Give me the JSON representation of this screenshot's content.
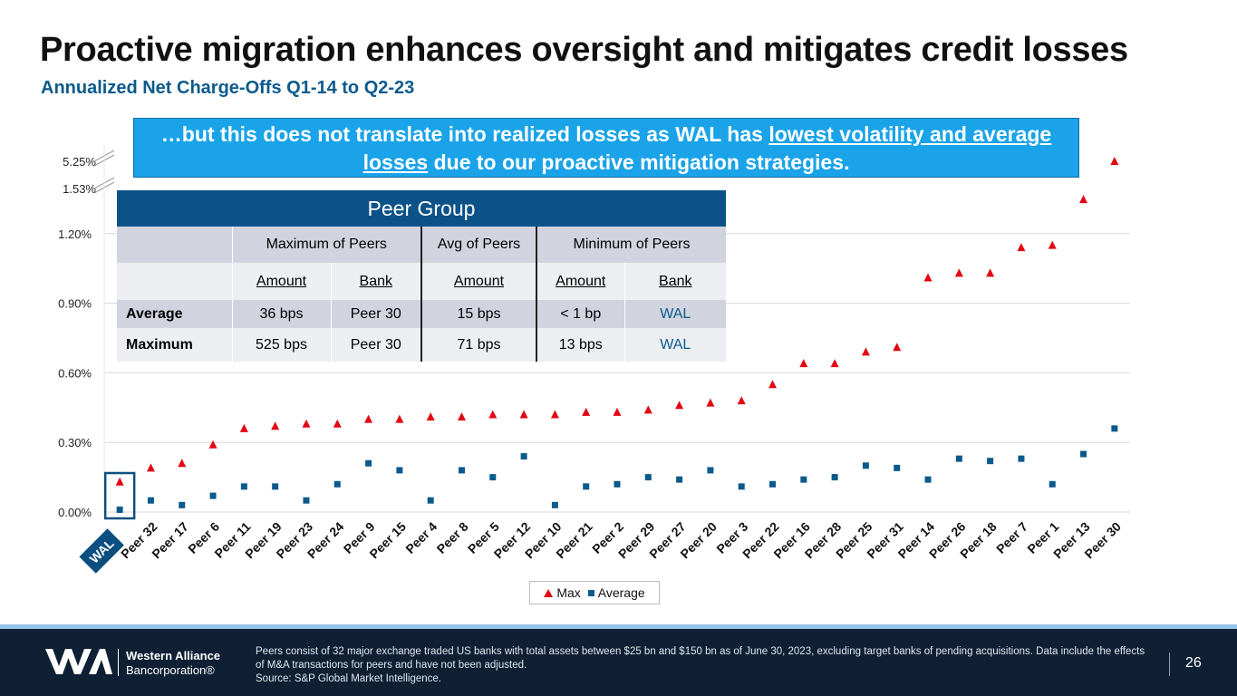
{
  "title": "Proactive migration enhances oversight and mitigates credit losses",
  "subtitle": "Annualized Net Charge-Offs Q1-14 to Q2-23",
  "callout": {
    "pre": "…but this does not translate into realized losses as WAL has ",
    "underlined": "lowest volatility and average losses",
    "post": " due to our proactive mitigation strategies."
  },
  "peer_table": {
    "title": "Peer Group",
    "col_groups": [
      "Maximum of Peers",
      "Avg of Peers",
      "Minimum of Peers"
    ],
    "sub_headers": [
      "Amount",
      "Bank",
      "Amount",
      "Amount",
      "Bank"
    ],
    "rows": [
      {
        "label": "Average",
        "cells": [
          "36 bps",
          "Peer 30",
          "15 bps",
          "< 1 bp",
          "WAL"
        ]
      },
      {
        "label": "Maximum",
        "cells": [
          "525 bps",
          "Peer 30",
          "71 bps",
          "13 bps",
          "WAL"
        ]
      }
    ]
  },
  "chart_data": {
    "type": "scatter",
    "title": "Annualized Net Charge-Offs Q1-14 to Q2-23",
    "categories": [
      "WAL",
      "Peer 32",
      "Peer 17",
      "Peer 6",
      "Peer 11",
      "Peer 19",
      "Peer 23",
      "Peer 24",
      "Peer 9",
      "Peer 15",
      "Peer 4",
      "Peer 8",
      "Peer 5",
      "Peer 12",
      "Peer 10",
      "Peer 21",
      "Peer 2",
      "Peer 29",
      "Peer 27",
      "Peer 20",
      "Peer 3",
      "Peer 22",
      "Peer 16",
      "Peer 28",
      "Peer 25",
      "Peer 31",
      "Peer 14",
      "Peer 26",
      "Peer 18",
      "Peer 7",
      "Peer 1",
      "Peer 13",
      "Peer 30"
    ],
    "series": [
      {
        "name": "Max",
        "marker": "triangle",
        "color": "#e30613",
        "values": [
          0.13,
          0.19,
          0.21,
          0.29,
          0.36,
          0.37,
          0.38,
          0.38,
          0.4,
          0.4,
          0.41,
          0.41,
          0.42,
          0.42,
          0.42,
          0.43,
          0.43,
          0.44,
          0.46,
          0.47,
          0.48,
          0.55,
          0.64,
          0.64,
          0.69,
          0.71,
          1.01,
          1.03,
          1.03,
          1.14,
          1.15,
          1.45,
          5.25
        ]
      },
      {
        "name": "Average",
        "marker": "square",
        "color": "#0b5a8c",
        "values": [
          0.01,
          0.05,
          0.03,
          0.07,
          0.11,
          0.11,
          0.05,
          0.12,
          0.21,
          0.18,
          0.05,
          0.18,
          0.15,
          0.24,
          0.03,
          0.11,
          0.12,
          0.15,
          0.14,
          0.18,
          0.11,
          0.12,
          0.14,
          0.15,
          0.2,
          0.19,
          0.14,
          0.23,
          0.22,
          0.23,
          0.12,
          0.25,
          0.36
        ]
      }
    ],
    "y_ticks": [
      "0.00%",
      "0.30%",
      "0.60%",
      "0.90%",
      "1.20%"
    ],
    "y_break_ticks": [
      "1.53%",
      "5.25%"
    ],
    "ylim": [
      0,
      5.25
    ],
    "grid": true,
    "legend": "bottom-center",
    "highlight_category": "WAL"
  },
  "legend": {
    "max": "Max",
    "average": "Average"
  },
  "footer": {
    "logo_line1": "Western Alliance",
    "logo_line2": "Bancorporation®",
    "note": "Peers consist of 32 major exchange traded US banks with total assets between $25 bn and $150 bn as of June 30, 2023, excluding target banks of pending acquisitions. Data include the effects of M&A transactions for peers and have not been adjusted.",
    "source": "Source: S&P Global Market Intelligence.",
    "page": "26"
  },
  "colors": {
    "accent": "#0b5a8c",
    "callout": "#1aa3e8",
    "table_header": "#0b5289",
    "footer_bg": "#0f2034",
    "max_marker": "#e30613"
  }
}
